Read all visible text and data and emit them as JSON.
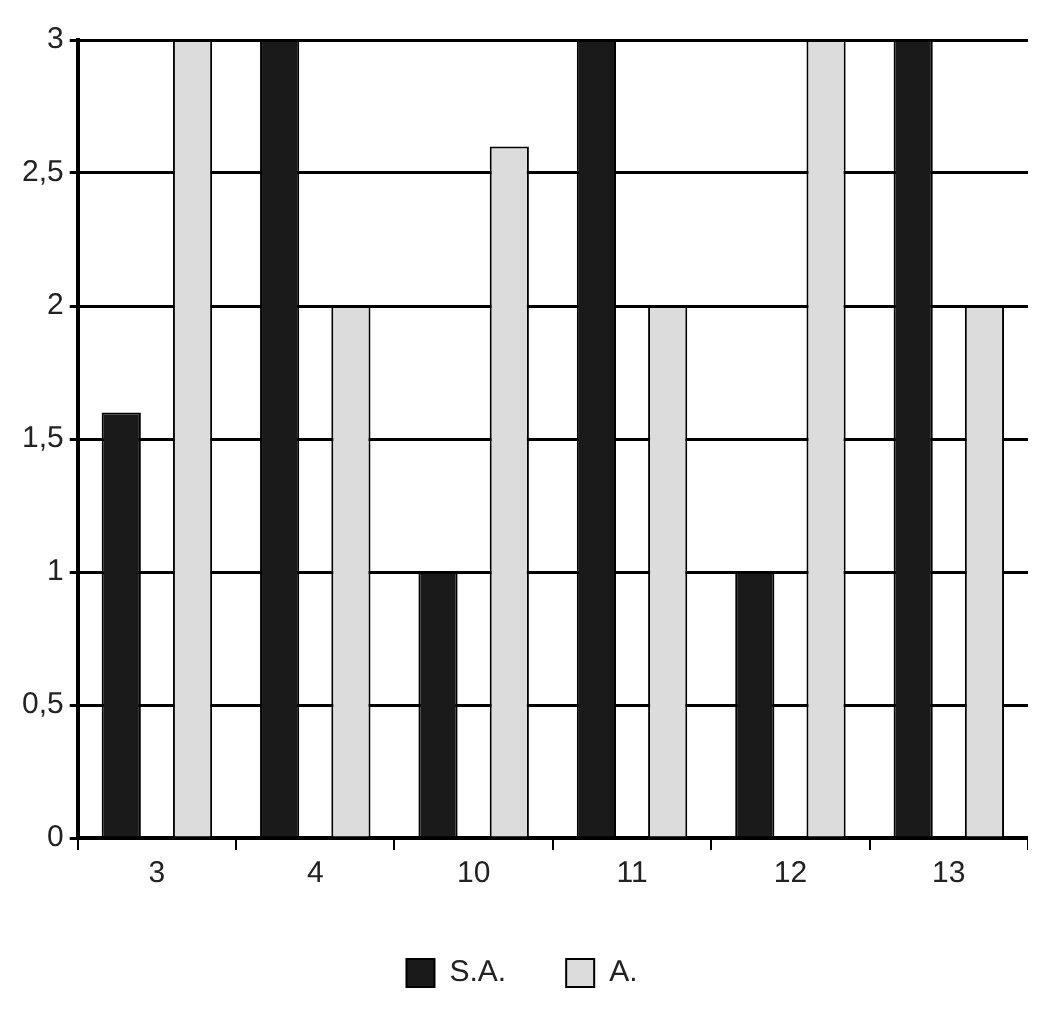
{
  "chart_data": {
    "type": "bar",
    "categories": [
      "3",
      "4",
      "10",
      "11",
      "12",
      "13"
    ],
    "series": [
      {
        "name": "S.A.",
        "color": "#1a1a1a",
        "values": [
          1.6,
          3,
          1,
          3,
          1,
          3
        ]
      },
      {
        "name": "A.",
        "color": "#dcdcdc",
        "values": [
          3,
          2,
          2.6,
          2,
          3,
          2
        ]
      }
    ],
    "ylim": [
      0,
      3
    ],
    "yticks": [
      0,
      {
        "value": 0.5,
        "label": "0,5"
      },
      1,
      {
        "value": 1.5,
        "label": "1,5"
      },
      2,
      {
        "value": 2.5,
        "label": "2,5"
      },
      3
    ],
    "grid": "y",
    "legend": "bottom"
  }
}
